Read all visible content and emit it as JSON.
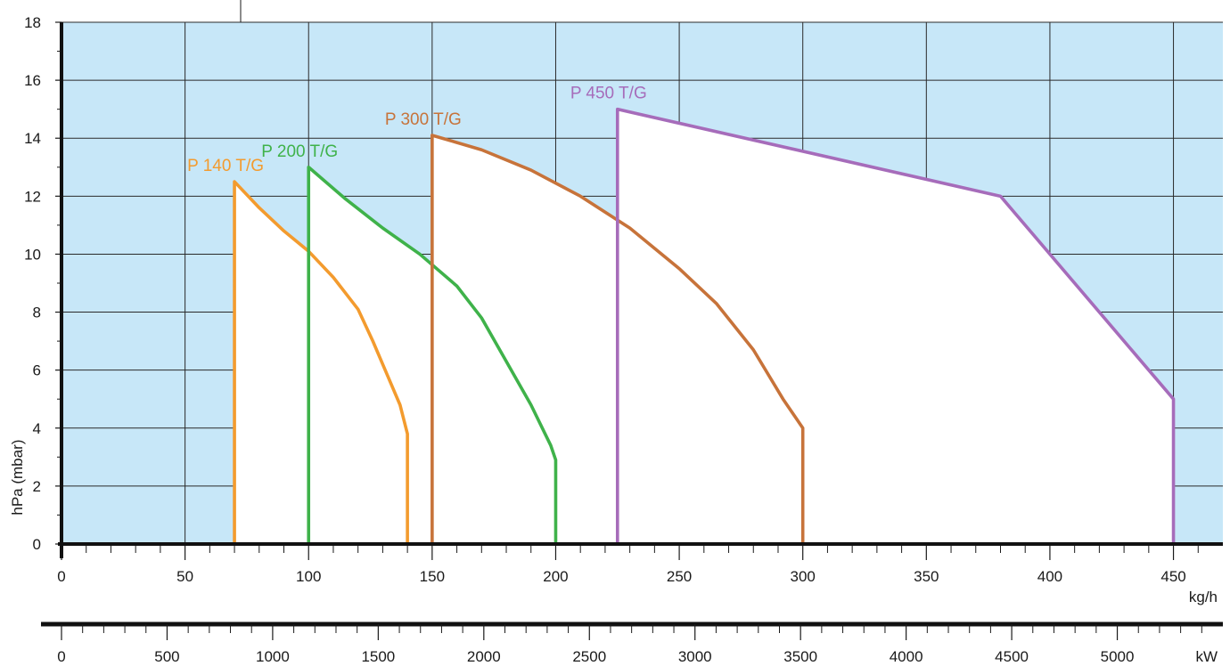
{
  "chart_data": {
    "type": "area",
    "title": "",
    "ylabel": "hPa (mbar)",
    "xlabel": "kg/h",
    "x2label": "kW",
    "xlim": [
      0,
      470
    ],
    "ylim": [
      0,
      18
    ],
    "x2lim": [
      0,
      5500
    ],
    "x_ticks": [
      0,
      50,
      100,
      150,
      200,
      250,
      300,
      350,
      400,
      450
    ],
    "x_tick_labels": [
      "0",
      "50",
      "100",
      "150",
      "200",
      "250",
      "300",
      "350",
      "400",
      "450"
    ],
    "y_ticks": [
      0,
      2,
      4,
      6,
      8,
      10,
      12,
      14,
      16,
      18
    ],
    "y_tick_labels": [
      "0",
      "2",
      "4",
      "6",
      "8",
      "10",
      "12",
      "14",
      "16",
      "18"
    ],
    "x2_ticks": [
      0,
      500,
      1000,
      1500,
      2000,
      2500,
      3000,
      3500,
      4000,
      4500,
      5000
    ],
    "x2_tick_labels": [
      "0",
      "500",
      "1000",
      "1500",
      "2000",
      "2500",
      "3000",
      "3500",
      "4000",
      "4500",
      "5000"
    ],
    "grid": true,
    "background_color": "#c7e7f8",
    "series": [
      {
        "name": "P 140 T/G",
        "color": "#f39b2e",
        "points": [
          [
            70,
            0
          ],
          [
            70,
            12.5
          ],
          [
            80,
            11.6
          ],
          [
            90,
            10.8
          ],
          [
            100,
            10.1
          ],
          [
            110,
            9.2
          ],
          [
            120,
            8.1
          ],
          [
            126,
            7.0
          ],
          [
            132,
            5.8
          ],
          [
            137,
            4.8
          ],
          [
            140,
            3.8
          ],
          [
            140,
            0
          ]
        ]
      },
      {
        "name": "P 200 T/G",
        "color": "#3fb24a",
        "points": [
          [
            100,
            0
          ],
          [
            100,
            13.0
          ],
          [
            115,
            11.9
          ],
          [
            130,
            10.9
          ],
          [
            145,
            10.0
          ],
          [
            160,
            8.9
          ],
          [
            170,
            7.8
          ],
          [
            180,
            6.3
          ],
          [
            190,
            4.8
          ],
          [
            198,
            3.4
          ],
          [
            200,
            2.9
          ],
          [
            200,
            0
          ]
        ]
      },
      {
        "name": "P 300 T/G",
        "color": "#c7733a",
        "points": [
          [
            150,
            0
          ],
          [
            150,
            14.1
          ],
          [
            170,
            13.6
          ],
          [
            190,
            12.9
          ],
          [
            210,
            12.0
          ],
          [
            230,
            10.9
          ],
          [
            250,
            9.5
          ],
          [
            265,
            8.3
          ],
          [
            280,
            6.7
          ],
          [
            292,
            5.0
          ],
          [
            300,
            4.0
          ],
          [
            300,
            0
          ]
        ]
      },
      {
        "name": "P 450 T/G",
        "color": "#a66cba",
        "points": [
          [
            225,
            0
          ],
          [
            225,
            15.0
          ],
          [
            380,
            12.0
          ],
          [
            450,
            5.0
          ],
          [
            450,
            0
          ]
        ]
      }
    ]
  }
}
